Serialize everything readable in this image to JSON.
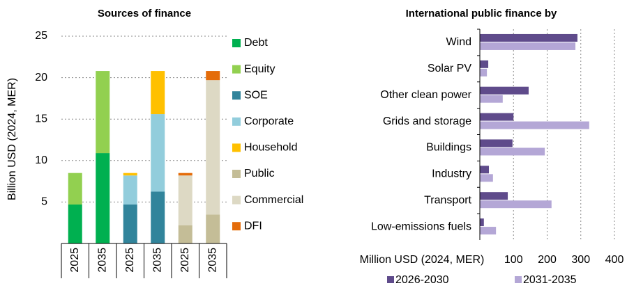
{
  "chart_data": [
    {
      "type": "stacked_bar",
      "title": "Sources of finance",
      "y_label": "Billion USD (2024, MER)",
      "categories": [
        "2025",
        "2035",
        "2025",
        "2035",
        "2025",
        "2035"
      ],
      "series": [
        {
          "name": "Debt",
          "color": "#00b050",
          "values": [
            4.7,
            10.9,
            0,
            0,
            0,
            0
          ]
        },
        {
          "name": "Equity",
          "color": "#92d050",
          "values": [
            3.8,
            9.9,
            0,
            0,
            0,
            0
          ]
        },
        {
          "name": "SOE",
          "color": "#31849b",
          "values": [
            0,
            0,
            4.7,
            6.25,
            0,
            0
          ]
        },
        {
          "name": "Corporate",
          "color": "#92cddc",
          "values": [
            0,
            0,
            3.5,
            9.35,
            0,
            0
          ]
        },
        {
          "name": "Household",
          "color": "#ffc000",
          "values": [
            0,
            0,
            0.3,
            5.2,
            0,
            0
          ]
        },
        {
          "name": "Public",
          "color": "#c4bd97",
          "values": [
            0,
            0,
            0,
            0,
            2.2,
            3.5
          ]
        },
        {
          "name": "Commercial",
          "color": "#ddd9c4",
          "values": [
            0,
            0,
            0,
            0,
            6.0,
            16.2
          ]
        },
        {
          "name": "DFI",
          "color": "#e46c0a",
          "values": [
            0,
            0,
            0,
            0,
            0.3,
            1.1
          ]
        }
      ],
      "ylim": [
        0,
        25
      ],
      "yticks": [
        5,
        10,
        15,
        20,
        25
      ],
      "grid": true
    },
    {
      "type": "hbar",
      "title": "International public finance by",
      "x_label": "Million USD (2024, MER)",
      "categories": [
        "Wind",
        "Solar PV",
        "Other clean power",
        "Grids and storage",
        "Buildings",
        "Industry",
        "Transport",
        "Low-emissions fuels"
      ],
      "series": [
        {
          "name": "2026-2030",
          "color": "#5f4b8b",
          "values": [
            290,
            25,
            145,
            100,
            97,
            27,
            83,
            12
          ]
        },
        {
          "name": "2031-2035",
          "color": "#b4a7d6",
          "values": [
            284,
            21,
            68,
            325,
            193,
            39,
            213,
            48
          ]
        }
      ],
      "xlim": [
        0,
        400
      ],
      "xticks": [
        100,
        200,
        300,
        400
      ],
      "grid": true
    }
  ]
}
